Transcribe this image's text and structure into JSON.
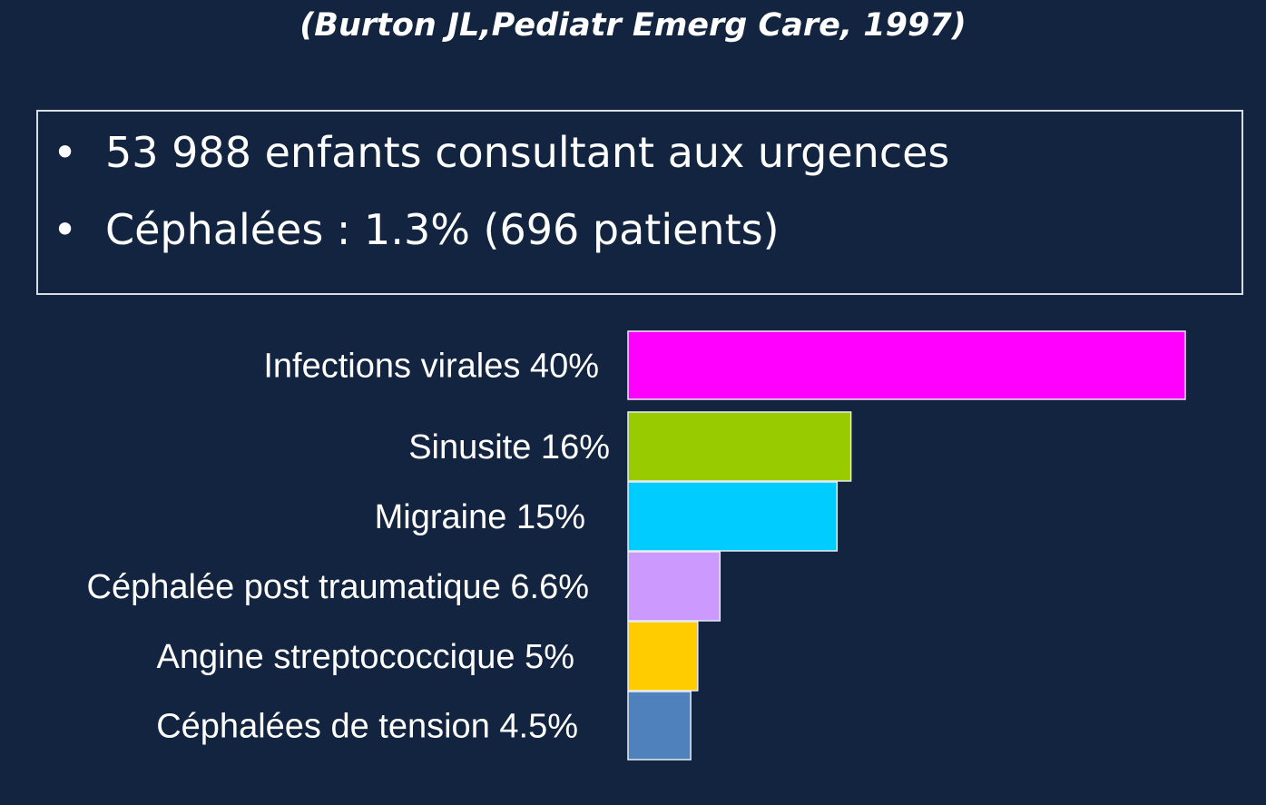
{
  "citation": "(Burton JL,Pediatr Emerg Care, 1997)",
  "summary": {
    "bullets": [
      "53 988 enfants consultant aux urgences",
      "Céphalées : 1.3% (696 patients)"
    ]
  },
  "chart_data": {
    "type": "bar",
    "orientation": "horizontal",
    "categories": [
      "Infections virales 40%",
      "Sinusite 16%",
      "Migraine 15%",
      "Céphalée post traumatique 6.6%",
      "Angine streptococcique 5%",
      "Céphalées de tension 4.5%"
    ],
    "values": [
      40,
      16,
      15,
      6.6,
      5,
      4.5
    ],
    "colors": [
      "#ff00ff",
      "#99cc00",
      "#00ccff",
      "#cc99ff",
      "#ffcc00",
      "#4f81bd"
    ],
    "grid": false,
    "legend": "none"
  }
}
